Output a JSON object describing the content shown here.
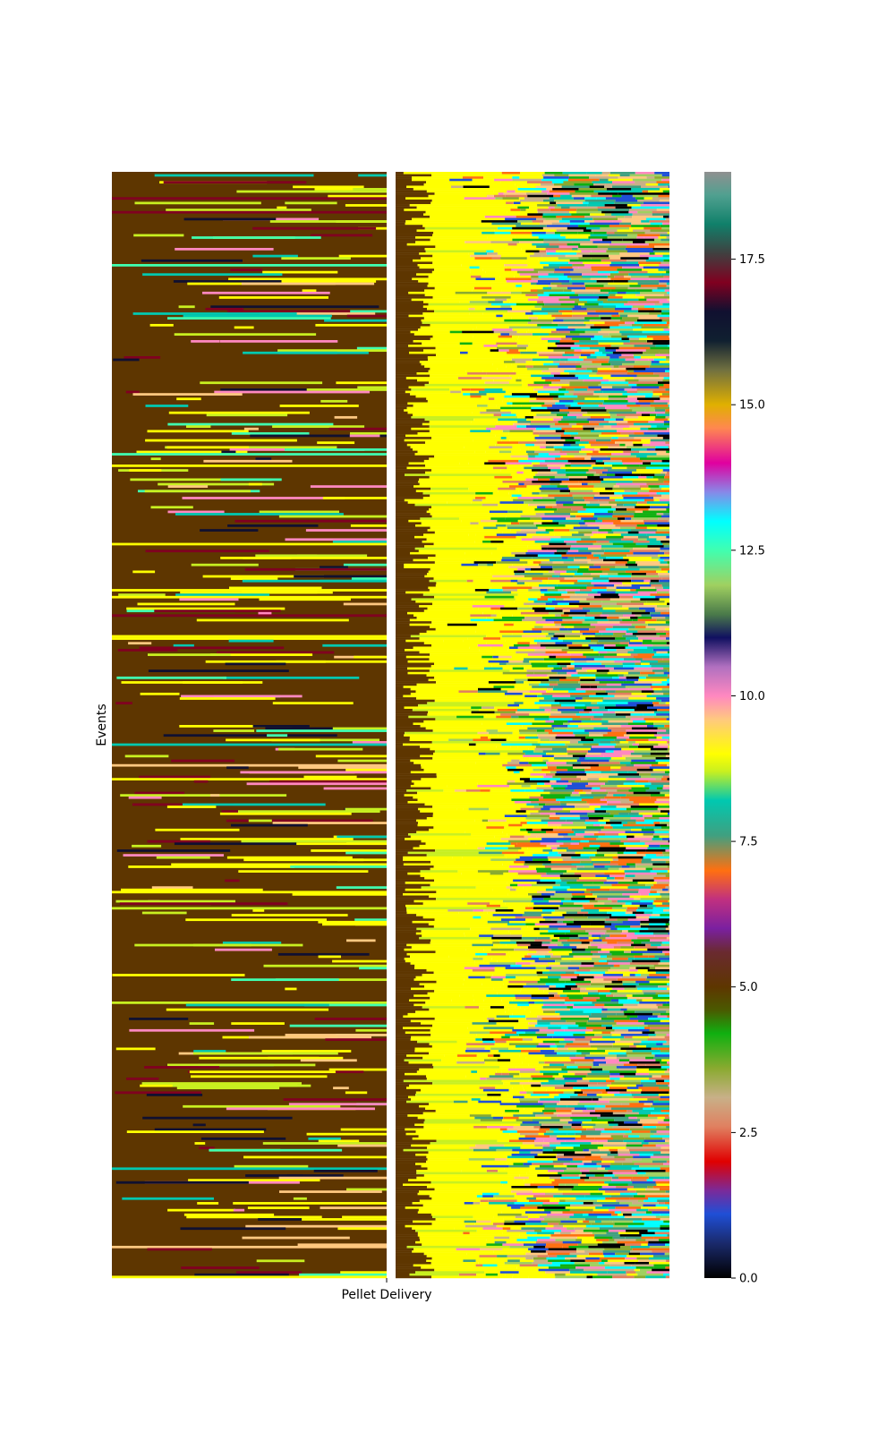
{
  "chart_data": {
    "type": "heatmap",
    "title": "",
    "xlabel": "Pellet Delivery",
    "ylabel": "Events",
    "row_count": 480,
    "colorbar": {
      "range": [
        0,
        19
      ],
      "ticks": [
        0.0,
        2.5,
        5.0,
        7.5,
        10.0,
        12.5,
        15.0,
        17.5
      ],
      "tick_labels": [
        "0.0",
        "2.5",
        "5.0",
        "7.5",
        "10.0",
        "12.5",
        "15.0",
        "17.5"
      ],
      "stops": [
        {
          "v": 0.0,
          "color": "#000000"
        },
        {
          "v": 0.6,
          "color": "#1a2a6c"
        },
        {
          "v": 1.1,
          "color": "#1f4fd6"
        },
        {
          "v": 1.5,
          "color": "#7a2a9a"
        },
        {
          "v": 2.0,
          "color": "#e00000"
        },
        {
          "v": 2.6,
          "color": "#e08060"
        },
        {
          "v": 3.1,
          "color": "#c8b088"
        },
        {
          "v": 3.6,
          "color": "#8aaa30"
        },
        {
          "v": 4.2,
          "color": "#10b010"
        },
        {
          "v": 4.6,
          "color": "#4a5a00"
        },
        {
          "v": 5.0,
          "color": "#5e3600"
        },
        {
          "v": 5.6,
          "color": "#6a2a30"
        },
        {
          "v": 6.0,
          "color": "#7a20a0"
        },
        {
          "v": 6.5,
          "color": "#c03080"
        },
        {
          "v": 7.0,
          "color": "#ff7010"
        },
        {
          "v": 7.6,
          "color": "#40a080"
        },
        {
          "v": 8.2,
          "color": "#00c8b0"
        },
        {
          "v": 8.7,
          "color": "#c8f020"
        },
        {
          "v": 9.0,
          "color": "#ffff00"
        },
        {
          "v": 9.6,
          "color": "#ffc880"
        },
        {
          "v": 10.0,
          "color": "#ff88c0"
        },
        {
          "v": 10.5,
          "color": "#b070c0"
        },
        {
          "v": 11.0,
          "color": "#101060"
        },
        {
          "v": 11.4,
          "color": "#4a7a4a"
        },
        {
          "v": 11.9,
          "color": "#a0d060"
        },
        {
          "v": 12.5,
          "color": "#40ffb0"
        },
        {
          "v": 13.0,
          "color": "#00ffff"
        },
        {
          "v": 13.5,
          "color": "#8888e8"
        },
        {
          "v": 14.0,
          "color": "#e000a0"
        },
        {
          "v": 14.6,
          "color": "#ff8850"
        },
        {
          "v": 15.0,
          "color": "#e0b000"
        },
        {
          "v": 15.6,
          "color": "#707040"
        },
        {
          "v": 16.1,
          "color": "#102030"
        },
        {
          "v": 16.6,
          "color": "#101030"
        },
        {
          "v": 17.1,
          "color": "#800020"
        },
        {
          "v": 17.6,
          "color": "#404040"
        },
        {
          "v": 18.1,
          "color": "#10806a"
        },
        {
          "v": 18.6,
          "color": "#50a090"
        },
        {
          "v": 19.0,
          "color": "#909090"
        }
      ]
    },
    "palette_by_region": {
      "before_delivery": {
        "background": "#5e3600",
        "bar_colors": [
          "#ffff00",
          "#c8f020",
          "#ffc880",
          "#ff88c0",
          "#00c8b0",
          "#40ffb0",
          "#800020",
          "#101030"
        ]
      },
      "after_delivery": {
        "colors": [
          "#ffff00",
          "#ff7010",
          "#c8b088",
          "#8aaa30",
          "#10b010",
          "#1f4fd6",
          "#ff88c0",
          "#40a080",
          "#00c8b0",
          "#e08060",
          "#5e3600",
          "#000000",
          "#00ffff",
          "#a0d060"
        ]
      }
    }
  }
}
